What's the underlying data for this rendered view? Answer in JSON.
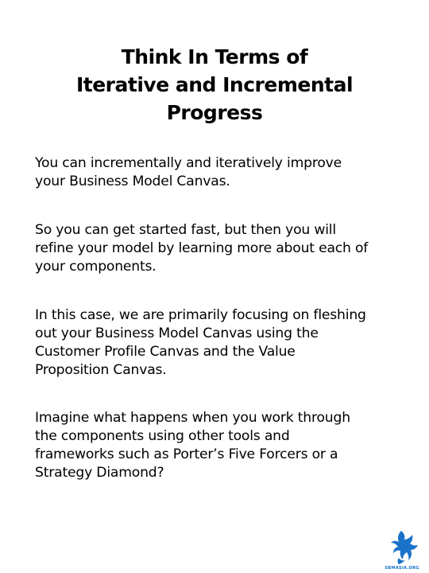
{
  "title_lines": [
    "Think In Terms of",
    "Iterative and Incremental",
    "Progress"
  ],
  "paragraphs": [
    {
      "lines": [
        "You can incrementally and iteratively improve",
        "your Business Model Canvas."
      ]
    },
    {
      "lines": [
        "So you can get started fast, but then you will",
        "refine your model by learning more about each of",
        "your components."
      ]
    },
    {
      "lines": [
        "In this case, we are primarily focusing on fleshing",
        "out your Business Model Canvas using the",
        "Customer Profile Canvas and the Value",
        "Proposition Canvas."
      ]
    },
    {
      "lines": [
        "Imagine what happens when you work through",
        "the components using other tools and",
        "frameworks such as Porter’s Five Forcers or a",
        "Strategy Diamond?"
      ]
    }
  ],
  "logo": {
    "icon": "blue-bird-logo-icon",
    "text": "SBMASIA.ORG",
    "color": "#1a73c9"
  }
}
